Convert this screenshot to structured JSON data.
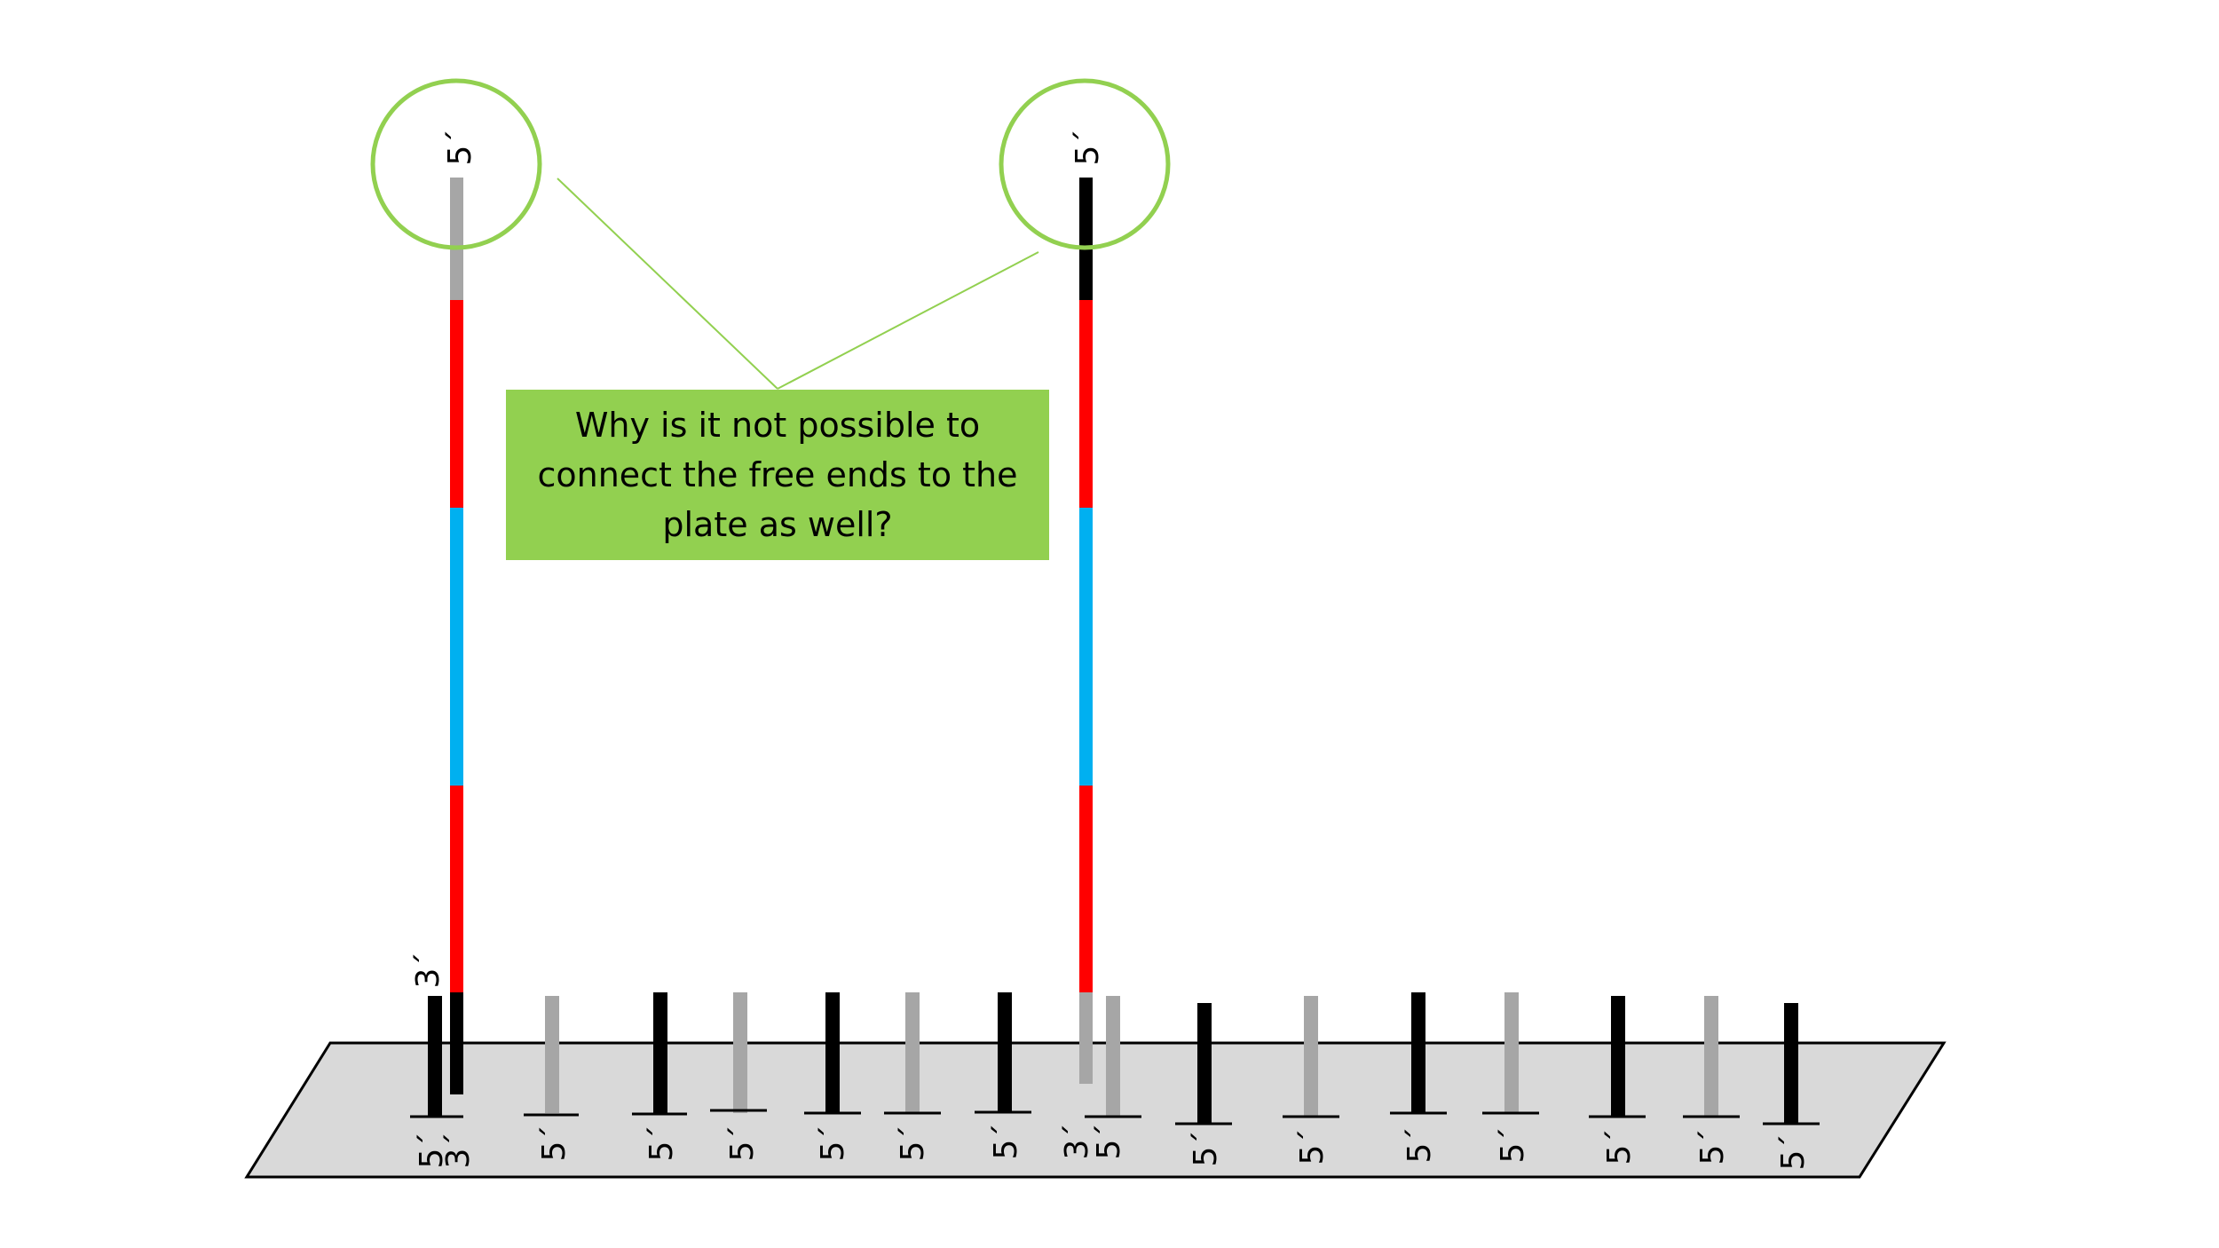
{
  "question": "Why is it not possible to connect the free ends to the plate as well?",
  "colors": {
    "plate": "#d9d9d9",
    "strand_black": "#000000",
    "strand_gray": "#a6a6a6",
    "segment_red": "#ff0000",
    "segment_blue": "#00b0f0",
    "highlight_green": "#92d050"
  },
  "labels": {
    "five_prime": "5´",
    "three_prime": "3´"
  },
  "strands": {
    "left_tall": {
      "end_label": "5´",
      "bottom_label": "3´",
      "cap_color": "gray",
      "segments": [
        "gray",
        "red",
        "blue",
        "red",
        "black"
      ]
    },
    "right_tall": {
      "end_label": "5´",
      "cap_color": "black",
      "segments": [
        "black",
        "red",
        "blue",
        "red",
        "gray"
      ]
    }
  },
  "anchored_strands": [
    {
      "color": "black",
      "label": "5´"
    },
    {
      "color": "black",
      "label": "3´"
    },
    {
      "color": "gray",
      "label": "5´"
    },
    {
      "color": "black",
      "label": "5´"
    },
    {
      "color": "gray",
      "label": "5´"
    },
    {
      "color": "black",
      "label": "5´"
    },
    {
      "color": "gray",
      "label": "5´"
    },
    {
      "color": "black",
      "label": "5´"
    },
    {
      "color": "gray",
      "label": "3´"
    },
    {
      "color": "gray",
      "label": "5´"
    },
    {
      "color": "black",
      "label": "5´"
    },
    {
      "color": "gray",
      "label": "5´"
    },
    {
      "color": "black",
      "label": "5´"
    },
    {
      "color": "gray",
      "label": "5´"
    },
    {
      "color": "black",
      "label": "5´"
    },
    {
      "color": "gray",
      "label": "5´"
    },
    {
      "color": "black",
      "label": "5´"
    }
  ]
}
